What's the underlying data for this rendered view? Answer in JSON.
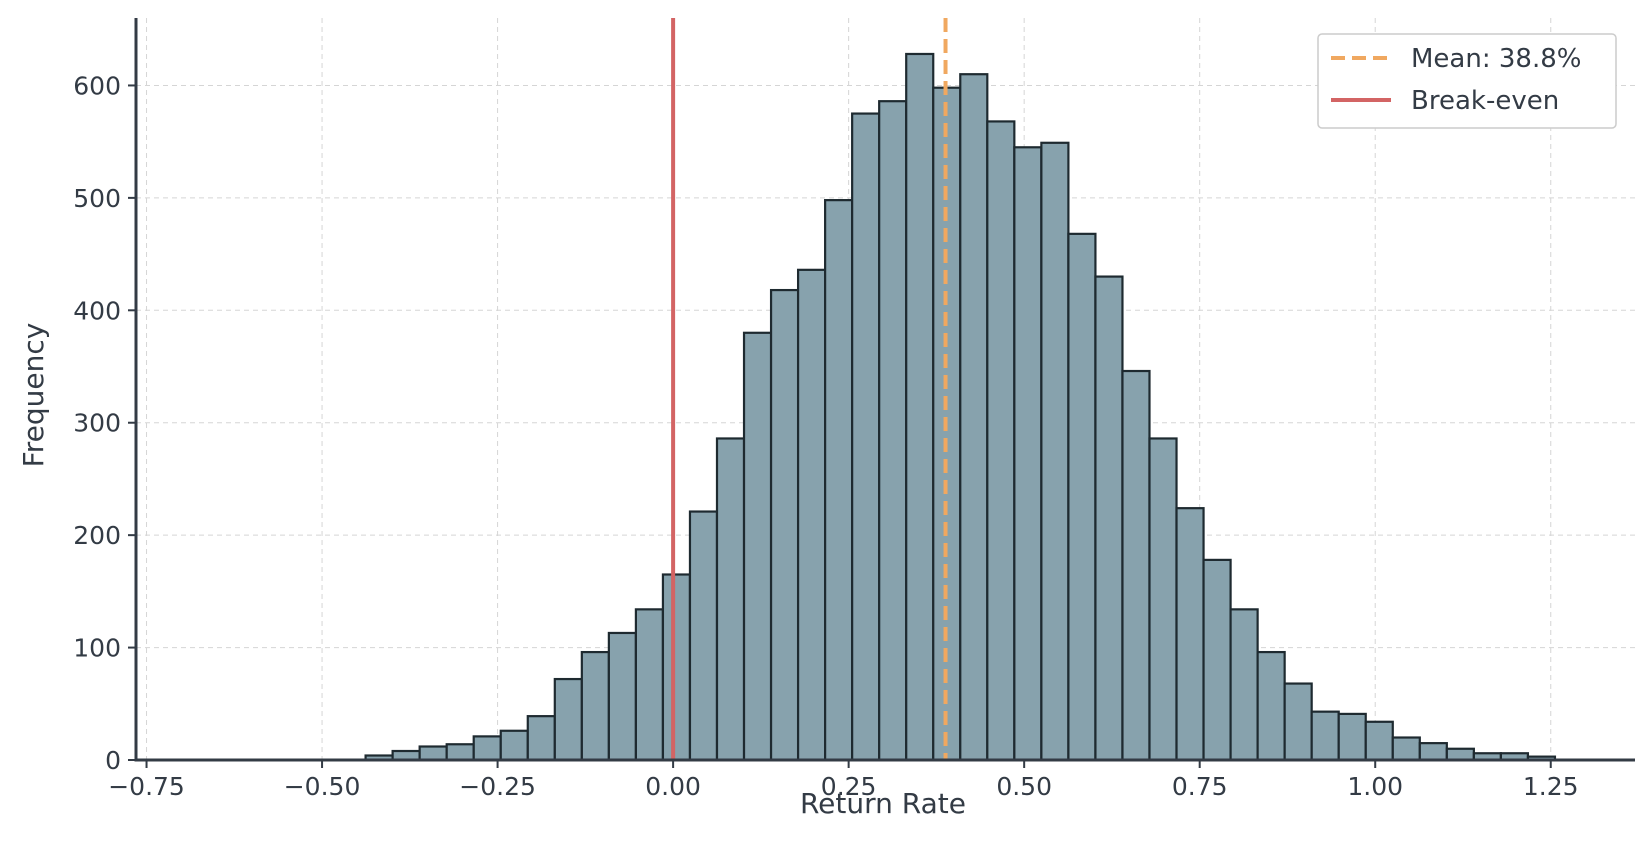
{
  "chart_data": {
    "type": "bar",
    "title": "",
    "xlabel": "Return Rate",
    "ylabel": "Frequency",
    "xlim": [
      -0.765,
      1.37
    ],
    "ylim": [
      0,
      660
    ],
    "grid": true,
    "legend_position": "top-right",
    "xticks": [
      -0.75,
      -0.5,
      -0.25,
      0.0,
      0.25,
      0.5,
      0.75,
      1.0,
      1.25
    ],
    "xtick_labels": [
      "−0.75",
      "−0.50",
      "−0.25",
      "0.00",
      "0.25",
      "0.50",
      "0.75",
      "1.00",
      "1.25"
    ],
    "yticks": [
      0,
      100,
      200,
      300,
      400,
      500,
      600
    ],
    "ytick_labels": [
      "0",
      "100",
      "200",
      "300",
      "400",
      "500",
      "600"
    ],
    "bin_start": -0.438,
    "bin_width": 0.0385,
    "values": [
      4,
      8,
      12,
      14,
      21,
      26,
      39,
      72,
      96,
      113,
      134,
      165,
      221,
      286,
      380,
      418,
      436,
      498,
      575,
      586,
      628,
      598,
      610,
      568,
      545,
      549,
      468,
      430,
      346,
      286,
      224,
      178,
      134,
      96,
      68,
      43,
      41,
      34,
      20,
      15,
      10,
      6,
      6,
      3
    ],
    "bar_color": "#87a2ad",
    "bar_edge_color": "#1e2a30",
    "reference_lines": [
      {
        "label": "Mean: 38.8%",
        "x": 0.388,
        "color": "#f0a860",
        "style": "dashed"
      },
      {
        "label": "Break-even",
        "x": 0.0,
        "color": "#d36464",
        "style": "solid"
      }
    ]
  }
}
